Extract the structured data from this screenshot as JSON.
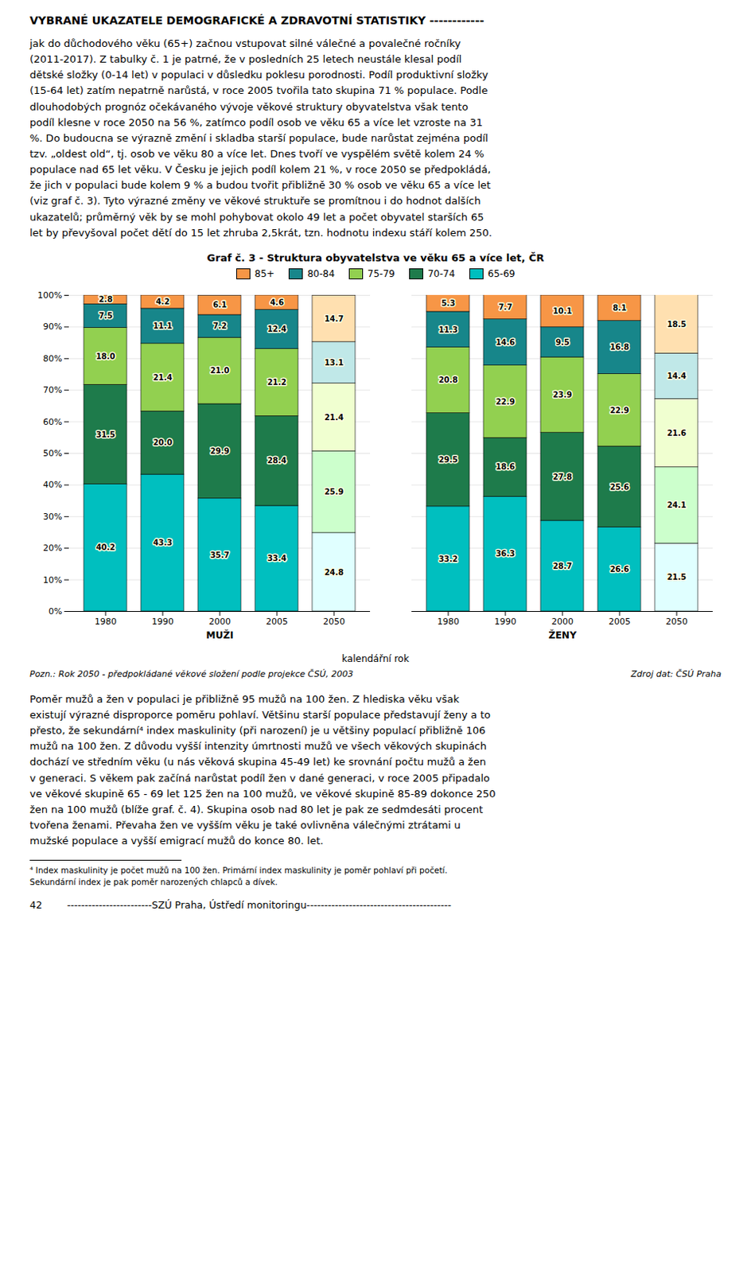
{
  "title": "VYBRANÉ UKAZATELE DEMOGRAFICKÉ A ZDRAVOTNÍ STATISTIKY ------------",
  "body_text_1": "jak do důchodového věku (65+) začnou vstupovat silné válečné a povalečné ročníky\n(2011-2017). Z tabulky č. 1 je patrné, že v posledních 25 letech neustále klesal podíl\ndětské složky (0-14 let) v populaci v důsledku poklesu porodnosti. Podíl produktivní složky\n(15-64 let) zatím nepatrně narůstá, v roce 2005 tvořila tato skupina 71 % populace. Podle\ndlouhodobých prognóz očekávaného vývoje věkové struktury obyvatelstva však tento\npodíl klesne v roce 2050 na 56 %, zatímco podíl osob ve věku 65 a více let vzroste na 31\n%. Do budoucna se výrazně změní i skladba starší populace, bude narůstat zejména podíl\ntzv. „oldest old“, tj. osob ve věku 80 a více let. Dnes tvoří ve vyspělém světě kolem 24 %\npopulace nad 65 let věku. V Česku je jejich podíl kolem 21 %, v roce 2050 se předpokládá,\nže jich v populaci bude kolem 9 % a budou tvořit přibližně 30 % osob ve věku 65 a více let\n(viz graf č. 3). Tyto výrazné změny ve věkové struktuře se promítnou i do hodnot dalších\nukazatelů; průměrný věk by se mohl pohybovat okolo 49 let a počet obyvatel starších 65\nlet by převyšoval počet dětí do 15 let zhruba 2,5krát, tzn. hodnotu indexu stáří kolem 250.",
  "body_text_2": "Poměr mužů a žen v populaci je přibližně 95 mužů na 100 žen. Z hlediska věku však\nexistují výrazné disproporce poměru pohlaví. Většinu starší populace představují ženy a to\npřesto, že sekundární⁴ index maskulinity (při narození) je u většiny populací přibližně 106\nmužů na 100 žen. Z důvodu vyšší intenzity úmrtnosti mužů ve všech věkových skupinách\ndochází ve středním věku (u nás věková skupina 45-49 let) ke srovnání počtu mužů a žen\nv generaci. S věkem pak začíná narůstat podíl žen v dané generaci, v roce 2005 připadalo\nve věkové skupině 65 - 69 let 125 žen na 100 mužů, ve věkové skupině 85-89 dokonce 250\nžen na 100 mužů (blíže graf. č. 4). Skupina osob nad 80 let je pak ze sedmdesáti procent\ntvořena ženami. Převaha žen ve vyšším věku je také ovlivněna válečnými ztrátami u\nmužské populace a vyšší emigrací mužů do konce 80. let.",
  "footnote": "⁴ Index maskulinity je počet mužů na 100 žen. Primární index maskulinity je poměr pohlaví při početí.\nSekundární index je pak poměr narozených chlapců a dívek.",
  "footer": "42        ------------------------SZÚ Praha, Ústředí monitoringu-----------------------------------------",
  "chart_data": {
    "type": "bar",
    "title": "Graf č. 3 - Struktura obyvatelstva ve věku 65 a více let, ČR",
    "x_label": "kalendářní rok",
    "groups": [
      "MUŽI",
      "ŽENY"
    ],
    "categories": [
      "1980",
      "1990",
      "2000",
      "2005",
      "2050"
    ],
    "stacked": true,
    "data_labels": true,
    "grid": true,
    "legend": "top",
    "ylim": [
      0,
      100
    ],
    "yticks": [
      {
        "value": 0,
        "label": "0%"
      },
      {
        "value": 10,
        "label": "10%"
      },
      {
        "value": 20,
        "label": "20%"
      },
      {
        "value": 30,
        "label": "30%"
      },
      {
        "value": 40,
        "label": "40%"
      },
      {
        "value": 50,
        "label": "50%"
      },
      {
        "value": 60,
        "label": "60%"
      },
      {
        "value": 70,
        "label": "70%"
      },
      {
        "value": 80,
        "label": "80%"
      },
      {
        "value": 90,
        "label": "90%"
      },
      {
        "value": 100,
        "label": "100%"
      }
    ],
    "series": [
      {
        "name": "65-69",
        "color": "#00BFBF",
        "colors": [
          [
            "#00BFBF",
            "#00BFBF",
            "#00BFBF",
            "#00BFBF",
            "#E0FFFF"
          ],
          [
            "#00BFBF",
            "#00BFBF",
            "#00BFBF",
            "#00BFBF",
            "#E0FFFF"
          ]
        ],
        "values": [
          [
            40.2,
            43.3,
            35.7,
            33.4,
            24.8
          ],
          [
            33.2,
            36.3,
            28.7,
            26.6,
            21.5
          ]
        ],
        "value_labels": [
          [
            "40.2",
            "43.3",
            "35.7",
            "33.4",
            "24.8"
          ],
          [
            "33.2",
            "36.3",
            "28.7",
            "26.6",
            "21.5"
          ]
        ]
      },
      {
        "name": "70-74",
        "color": "#1E7B4B",
        "colors": [
          [
            "#1E7B4B",
            "#1E7B4B",
            "#1E7B4B",
            "#1E7B4B",
            "#CCFFCC"
          ],
          [
            "#1E7B4B",
            "#1E7B4B",
            "#1E7B4B",
            "#1E7B4B",
            "#CCFFCC"
          ]
        ],
        "values": [
          [
            31.5,
            20.0,
            29.9,
            28.4,
            25.9
          ],
          [
            29.5,
            18.6,
            27.8,
            25.6,
            24.1
          ]
        ],
        "value_labels": [
          [
            "31.5",
            "20.0",
            "29.9",
            "28.4",
            "25.9"
          ],
          [
            "29.5",
            "18.6",
            "27.8",
            "25.6",
            "24.1"
          ]
        ]
      },
      {
        "name": "75-79",
        "color": "#92D050",
        "colors": [
          [
            "#92D050",
            "#92D050",
            "#92D050",
            "#92D050",
            "#F0FFD0"
          ],
          [
            "#92D050",
            "#92D050",
            "#92D050",
            "#92D050",
            "#F0FFD0"
          ]
        ],
        "values": [
          [
            18.0,
            21.4,
            21.0,
            21.2,
            21.4
          ],
          [
            20.8,
            22.9,
            23.9,
            22.9,
            21.6
          ]
        ],
        "value_labels": [
          [
            "18.0",
            "21.4",
            "21.0",
            "21.2",
            "21.4"
          ],
          [
            "20.8",
            "22.9",
            "23.9",
            "22.9",
            "21.6"
          ]
        ]
      },
      {
        "name": "80-84",
        "color": "#17868A",
        "colors": [
          [
            "#17868A",
            "#17868A",
            "#17868A",
            "#17868A",
            "#C0E8E8"
          ],
          [
            "#17868A",
            "#17868A",
            "#17868A",
            "#17868A",
            "#C0E8E8"
          ]
        ],
        "values": [
          [
            7.5,
            11.1,
            7.2,
            12.4,
            13.1
          ],
          [
            11.3,
            14.6,
            9.5,
            16.8,
            14.4
          ]
        ],
        "value_labels": [
          [
            "7.5",
            "11.1",
            "7.2",
            "12.4",
            "13.1"
          ],
          [
            "11.3",
            "14.6",
            "9.5",
            "16.8",
            "14.4"
          ]
        ]
      },
      {
        "name": "85+",
        "color": "#F79646",
        "colors": [
          [
            "#F79646",
            "#F79646",
            "#F79646",
            "#F79646",
            "#FFE0B0"
          ],
          [
            "#F79646",
            "#F79646",
            "#F79646",
            "#F79646",
            "#FFE0B0"
          ]
        ],
        "values": [
          [
            2.8,
            4.2,
            6.1,
            4.6,
            14.7
          ],
          [
            5.3,
            7.7,
            10.1,
            8.1,
            18.5
          ]
        ],
        "value_labels": [
          [
            "2.8",
            "4.2",
            "6.1",
            "4.6",
            "14.7"
          ],
          [
            "5.3",
            "7.7",
            "10.1",
            "8.1",
            "18.5"
          ]
        ]
      }
    ],
    "annotations": [
      "Pozn.: Rok 2050 - předpokládané věkové složení podle projekce ČSÚ, 2003",
      "Zdroj dat: ČSÚ Praha"
    ]
  }
}
